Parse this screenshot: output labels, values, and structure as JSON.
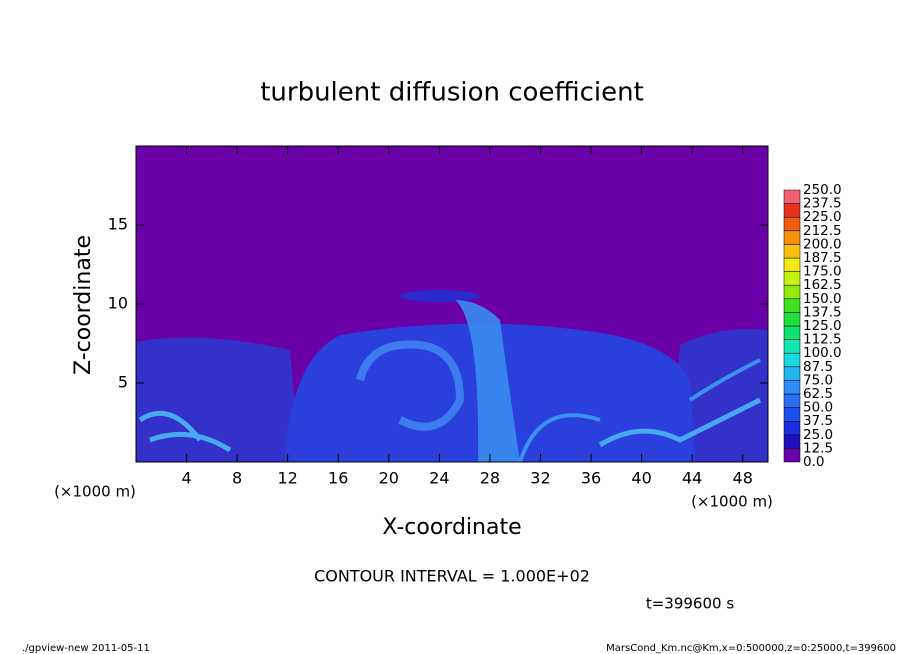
{
  "chart_data": {
    "type": "heatmap",
    "title": "turbulent diffusion coefficient",
    "xlabel": "X-coordinate",
    "ylabel": "Z-coordinate",
    "x_unit": "(×1000 m)",
    "xlim": [
      0,
      50
    ],
    "ylim": [
      0,
      20
    ],
    "xticks": [
      4,
      8,
      12,
      16,
      20,
      24,
      28,
      32,
      36,
      40,
      44,
      48
    ],
    "yticks": [
      5,
      10,
      15
    ],
    "colorbar": {
      "levels": [
        {
          "value": 0,
          "label": "0.0"
        },
        {
          "value": 12.5,
          "label": "12.5"
        },
        {
          "value": 25,
          "label": "25.0"
        },
        {
          "value": 37.5,
          "label": "37.5"
        },
        {
          "value": 50,
          "label": "50.0"
        },
        {
          "value": 62.5,
          "label": "62.5"
        },
        {
          "value": 75,
          "label": "75.0"
        },
        {
          "value": 87.5,
          "label": "87.5"
        },
        {
          "value": 100,
          "label": "100.0"
        },
        {
          "value": 112.5,
          "label": "112.5"
        },
        {
          "value": 125,
          "label": "125.0"
        },
        {
          "value": 137.5,
          "label": "137.5"
        },
        {
          "value": 150,
          "label": "150.0"
        },
        {
          "value": 162.5,
          "label": "162.5"
        },
        {
          "value": 175,
          "label": "175.0"
        },
        {
          "value": 187.5,
          "label": "187.5"
        },
        {
          "value": 200,
          "label": "200.0"
        },
        {
          "value": 212.5,
          "label": "212.5"
        },
        {
          "value": 225,
          "label": "225.0"
        },
        {
          "value": 237.5,
          "label": "237.5"
        },
        {
          "value": 250,
          "label": "250.0"
        }
      ],
      "colors": [
        "#6a00a8",
        "#1e10c0",
        "#1a2ee0",
        "#1e50f0",
        "#2a6ef8",
        "#2e8cf8",
        "#20b4f0",
        "#18d8e0",
        "#10e8b0",
        "#10e070",
        "#20e040",
        "#40e020",
        "#90e810",
        "#c8f010",
        "#f0e810",
        "#f8c010",
        "#f89010",
        "#f06010",
        "#e83020",
        "#f06070"
      ]
    },
    "contour_interval": "CONTOUR INTERVAL = 1.000E+02",
    "time_label": "t=399600 s",
    "footer_left": "./gpview-new   2011-05-11",
    "footer_right": "MarsCond_Km.nc@Km,x=0:500000,z=0:25000,t=399600"
  }
}
